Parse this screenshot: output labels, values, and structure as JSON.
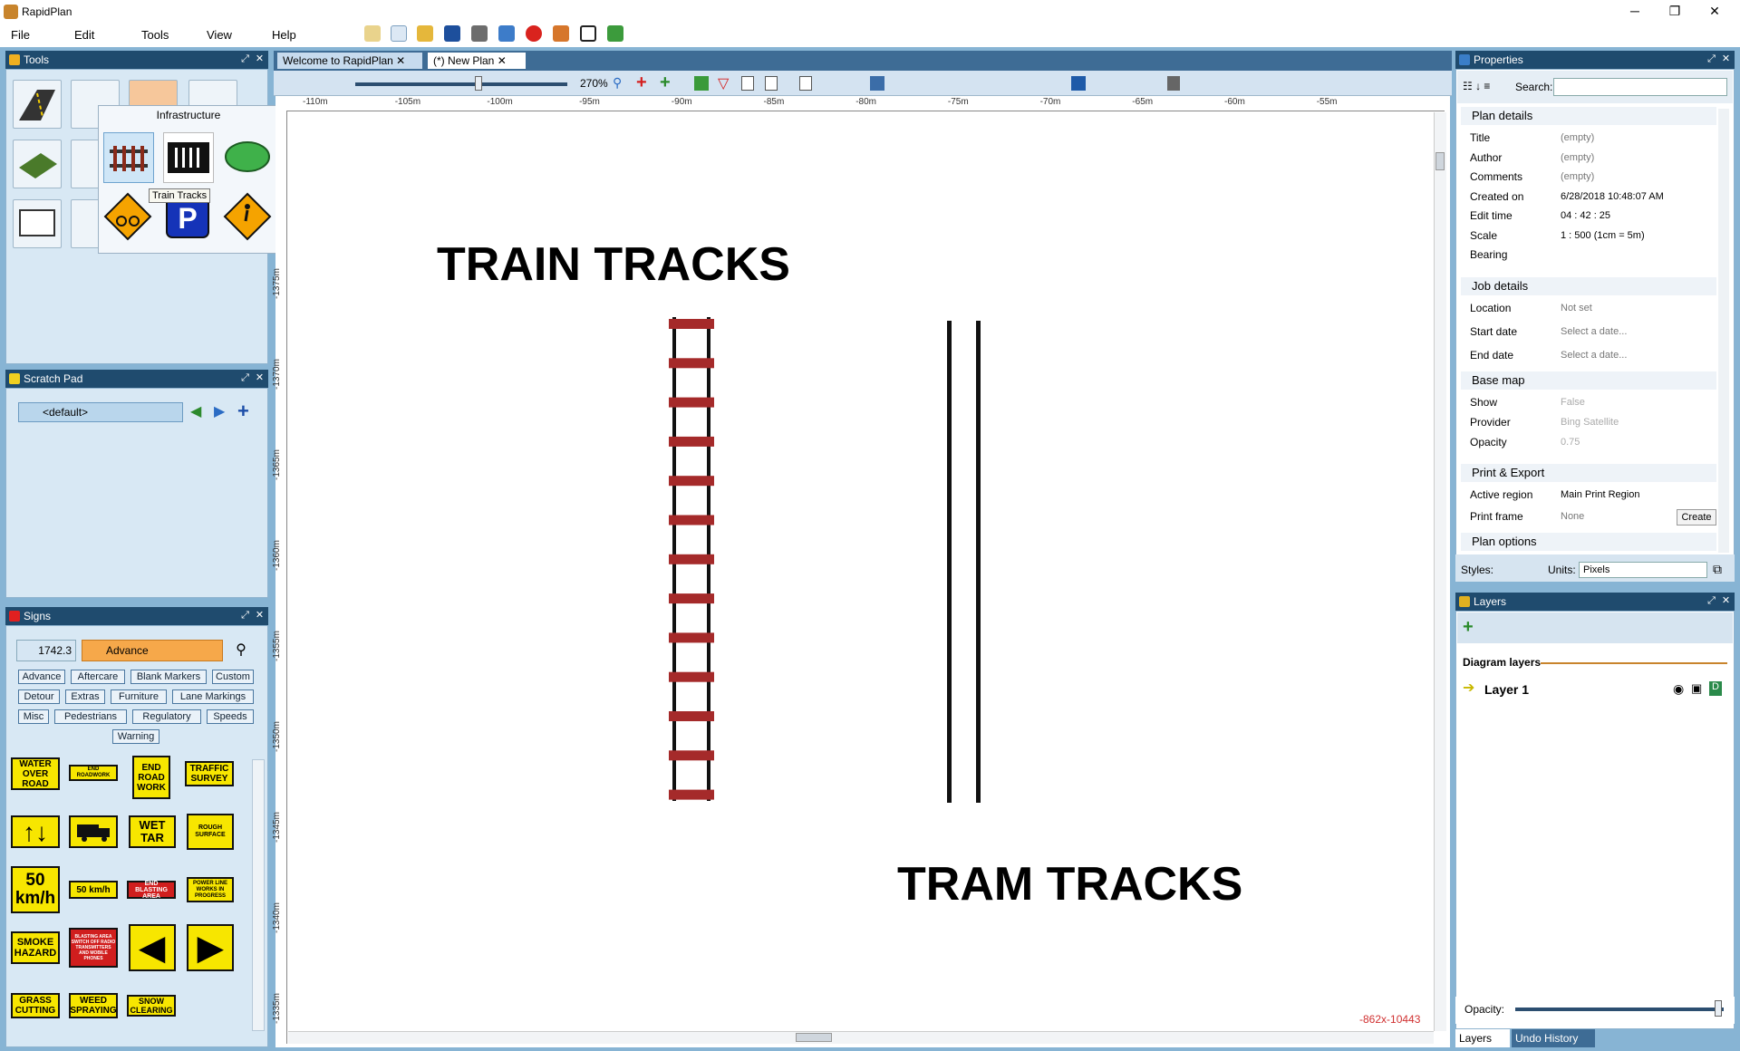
{
  "app": {
    "title": "RapidPlan"
  },
  "menu": [
    "File",
    "Edit",
    "Tools",
    "View",
    "Help"
  ],
  "tabs": [
    {
      "label": "Welcome to RapidPlan"
    },
    {
      "label": "(*) New Plan"
    }
  ],
  "tools_panel": {
    "title": "Tools",
    "popup_title": "Infrastructure",
    "tooltip": "Train Tracks"
  },
  "scratch_pad": {
    "title": "Scratch Pad",
    "selector": "<default>"
  },
  "signs_panel": {
    "title": "Signs",
    "standard": "1742.3",
    "category": "Advance",
    "filters": [
      "Advance",
      "Aftercare",
      "Blank Markers",
      "Custom",
      "Detour",
      "Extras",
      "Furniture",
      "Lane Markings",
      "Misc",
      "Pedestrians",
      "Regulatory",
      "Speeds",
      "Warning"
    ],
    "signs": [
      "WATER OVER ROAD",
      "END ROADWORK",
      "END ROAD WORK",
      "TRAFFIC SURVEY",
      "WET TAR",
      "ROUGH SURFACE",
      "50 km/h",
      "50 km/h",
      "END BLASTING AREA",
      "POWER LINE WORKS IN PROGRESS",
      "SMOKE HAZARD",
      "BLASTING AREA SWITCH OFF RADIO TRANSMITTERS AND MOBILE PHONES",
      "GRASS CUTTING",
      "WEED SPRAYING",
      "SNOW CLEARING"
    ]
  },
  "canvas": {
    "zoom": "270%",
    "ruler_h": [
      "-110m",
      "-105m",
      "-100m",
      "-95m",
      "-90m",
      "-85m",
      "-80m",
      "-75m",
      "-70m",
      "-65m",
      "-60m",
      "-55m"
    ],
    "ruler_v": [
      "-1375m",
      "-1370m",
      "-1365m",
      "-1360m",
      "-1355m",
      "-1350m",
      "-1345m",
      "-1340m",
      "-1335m"
    ],
    "label_train": "TRAIN TRACKS",
    "label_tram": "TRAM TRACKS",
    "coords": "-862x-10443"
  },
  "properties": {
    "title": "Properties",
    "search_label": "Search:",
    "plan_details": "Plan details",
    "rows": [
      {
        "label": "Title",
        "value": "(empty)"
      },
      {
        "label": "Author",
        "value": "(empty)"
      },
      {
        "label": "Comments",
        "value": "(empty)"
      },
      {
        "label": "Created on",
        "value": "6/28/2018 10:48:07 AM"
      },
      {
        "label": "Edit time",
        "value": "04 : 42 : 25"
      },
      {
        "label": "Scale",
        "value": "1 : 500   (1cm = 5m)"
      },
      {
        "label": "Bearing",
        "value": ""
      }
    ],
    "job_details": "Job details",
    "job_rows": [
      {
        "label": "Location",
        "value": "Not set"
      },
      {
        "label": "Start date",
        "value": "Select a date..."
      },
      {
        "label": "End date",
        "value": "Select a date..."
      }
    ],
    "base_map": "Base map",
    "map_rows": [
      {
        "label": "Show",
        "value": "False"
      },
      {
        "label": "Provider",
        "value": "Bing Satellite"
      },
      {
        "label": "Opacity",
        "value": "0.75"
      }
    ],
    "print_export": "Print & Export",
    "print_rows": [
      {
        "label": "Active region",
        "value": "Main Print Region"
      },
      {
        "label": "Print frame",
        "value": "None"
      }
    ],
    "create": "Create",
    "plan_options": "Plan options",
    "styles_label": "Styles:",
    "units_label": "Units:",
    "units_value": "Pixels"
  },
  "layers": {
    "title": "Layers",
    "diagram_layers": "Diagram layers",
    "layer1": "Layer 1",
    "opacity_label": "Opacity:",
    "tab_layers": "Layers",
    "tab_undo": "Undo History"
  }
}
